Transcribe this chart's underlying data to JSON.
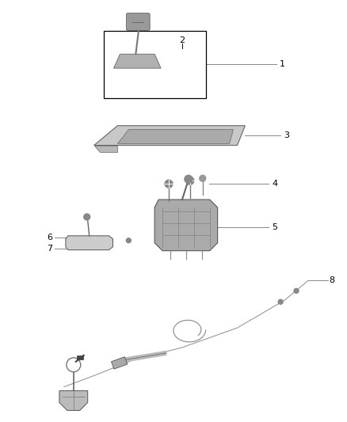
{
  "background": "#ffffff",
  "fig_width": 4.38,
  "fig_height": 5.33,
  "dpi": 100,
  "label_fontsize": 8.0,
  "line_color": "#888888",
  "part_color": "#555555",
  "box_color": "#000000",
  "leader_lw": 0.7
}
